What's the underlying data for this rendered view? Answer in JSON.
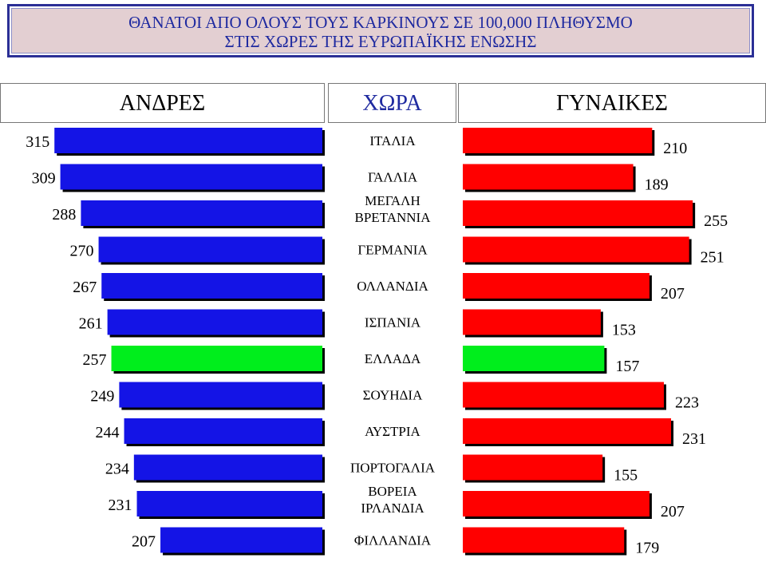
{
  "title": {
    "line1": "ΘΑΝΑΤΟΙ ΑΠΟ ΟΛΟΥΣ ΤΟΥΣ ΚΑΡΚΙΝΟΥΣ ΣΕ 100,000 ΠΛΗΘΥΣΜΟ",
    "line2": "ΣΤΙΣ ΧΩΡΕΣ ΤΗΣ ΕΥΡΩΠΑΪΚΗΣ ΕΝΩΣΗΣ"
  },
  "headers": {
    "men": "ΑΝΔΡΕΣ",
    "country": "ΧΩΡΑ",
    "women": "ΓΥΝΑΙΚΕΣ"
  },
  "colors": {
    "men": "#1414e6",
    "women": "#ff0000",
    "highlight": "#00ee1c",
    "title_text": "#1f2aa0",
    "title_bg": "#e3cfd2"
  },
  "chart_data": {
    "type": "bar",
    "orientation": "horizontal-back-to-back",
    "categories": [
      [
        "ΙΤΑΛΙΑ"
      ],
      [
        "ΓΑΛΛΙΑ"
      ],
      [
        "ΜΕΓΑΛΗ",
        "ΒΡΕΤΑΝΝΙΑ"
      ],
      [
        "ΓΕΡΜΑΝΙΑ"
      ],
      [
        "ΟΛΛΑΝΔΙΑ"
      ],
      [
        "ΙΣΠΑΝΙΑ"
      ],
      [
        "ΕΛΛΑΔΑ"
      ],
      [
        "ΣΟΥΗΔΙΑ"
      ],
      [
        "ΑΥΣΤΡΙΑ"
      ],
      [
        "ΠΟΡΤΟΓΑΛΙΑ"
      ],
      [
        "ΒΟΡΕΙΑ",
        "ΙΡΛΑΝΔΙΑ"
      ],
      [
        "ΦΙΛΛΑΝΔΙΑ"
      ]
    ],
    "highlight_category": "ΕΛΛΑΔΑ",
    "series": [
      {
        "name": "ΑΝΔΡΕΣ",
        "values": [
          315,
          309,
          288,
          270,
          267,
          261,
          257,
          249,
          244,
          234,
          231,
          207
        ]
      },
      {
        "name": "ΓΥΝΑΙΚΕΣ",
        "values": [
          210,
          189,
          255,
          251,
          207,
          153,
          157,
          223,
          231,
          155,
          207,
          179
        ]
      }
    ]
  }
}
